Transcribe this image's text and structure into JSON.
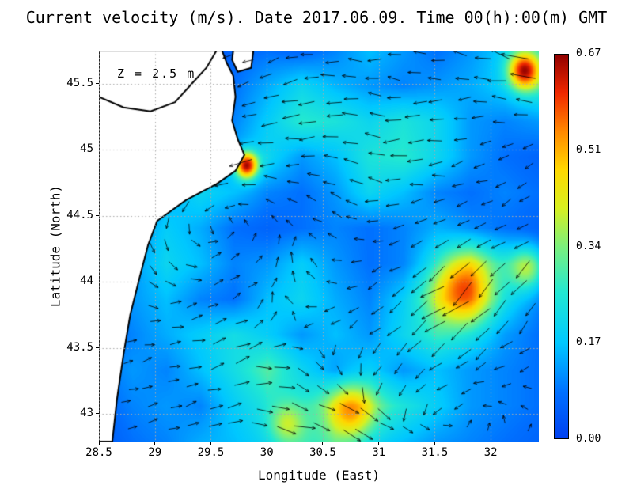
{
  "chart_data": {
    "type": "heatmap",
    "title": "Current velocity (m/s). Date 2017.06.09. Time 00(h):00(m) GMT",
    "annotation": "Z = 2.5 m",
    "xlabel": "Longitude (East)",
    "ylabel": "Latitude (North)",
    "xlim": [
      28.5,
      32.43
    ],
    "ylim": [
      42.79,
      45.75
    ],
    "xticks": [
      28.5,
      29,
      29.5,
      30,
      30.5,
      31,
      31.5,
      32
    ],
    "yticks": [
      43,
      43.5,
      44,
      44.5,
      45,
      45.5
    ],
    "colorbar": {
      "min": 0,
      "max": 0.67,
      "ticks": [
        "0.00",
        "0.17",
        "0.34",
        "0.51",
        "0.67"
      ],
      "stops": [
        [
          0.0,
          "#0040f0"
        ],
        [
          0.12,
          "#0070ff"
        ],
        [
          0.25,
          "#00c8ff"
        ],
        [
          0.38,
          "#22e8d2"
        ],
        [
          0.5,
          "#7cf07c"
        ],
        [
          0.6,
          "#d8f020"
        ],
        [
          0.7,
          "#ffd800"
        ],
        [
          0.8,
          "#ff8800"
        ],
        [
          0.9,
          "#f02800"
        ],
        [
          1.0,
          "#900000"
        ]
      ]
    },
    "colors": {
      "land": "#ffffff",
      "coast": "#000000",
      "arrow": "#000000",
      "grid": "#aaaaaa"
    },
    "speed_grid": {
      "lon": [
        28.5,
        32.43
      ],
      "lat": [
        45.75,
        42.79
      ],
      "values": [
        [
          0.04,
          0.04,
          0.04,
          0.04,
          0.06,
          0.08,
          0.06,
          0.1,
          0.16,
          0.12,
          0.08,
          0.12,
          0.18,
          0.22
        ],
        [
          0.04,
          0.04,
          0.04,
          0.05,
          0.08,
          0.14,
          0.2,
          0.15,
          0.12,
          0.1,
          0.12,
          0.14,
          0.18,
          0.25
        ],
        [
          0.04,
          0.04,
          0.05,
          0.06,
          0.1,
          0.18,
          0.26,
          0.24,
          0.2,
          0.24,
          0.2,
          0.12,
          0.1,
          0.12
        ],
        [
          0.04,
          0.04,
          0.05,
          0.08,
          0.14,
          0.2,
          0.12,
          0.16,
          0.24,
          0.26,
          0.2,
          0.12,
          0.08,
          0.06
        ],
        [
          0.04,
          0.06,
          0.14,
          0.2,
          0.16,
          0.1,
          0.08,
          0.12,
          0.2,
          0.16,
          0.1,
          0.08,
          0.1,
          0.08
        ],
        [
          0.06,
          0.1,
          0.18,
          0.14,
          0.08,
          0.06,
          0.08,
          0.1,
          0.08,
          0.1,
          0.14,
          0.1,
          0.08,
          0.06
        ],
        [
          0.06,
          0.12,
          0.2,
          0.16,
          0.1,
          0.12,
          0.18,
          0.12,
          0.08,
          0.1,
          0.2,
          0.3,
          0.22,
          0.12
        ],
        [
          0.08,
          0.12,
          0.16,
          0.1,
          0.08,
          0.16,
          0.2,
          0.14,
          0.1,
          0.18,
          0.3,
          0.32,
          0.2,
          0.1
        ],
        [
          0.06,
          0.1,
          0.14,
          0.18,
          0.22,
          0.18,
          0.12,
          0.16,
          0.12,
          0.2,
          0.26,
          0.2,
          0.12,
          0.08
        ],
        [
          0.08,
          0.12,
          0.1,
          0.16,
          0.22,
          0.3,
          0.2,
          0.12,
          0.18,
          0.12,
          0.16,
          0.12,
          0.1,
          0.08
        ],
        [
          0.06,
          0.1,
          0.12,
          0.1,
          0.18,
          0.24,
          0.26,
          0.3,
          0.3,
          0.24,
          0.18,
          0.12,
          0.1,
          0.08
        ],
        [
          0.04,
          0.08,
          0.1,
          0.14,
          0.16,
          0.2,
          0.26,
          0.28,
          0.2,
          0.16,
          0.12,
          0.1,
          0.08,
          0.06
        ]
      ]
    },
    "hotspots": [
      {
        "lon": 29.82,
        "lat": 44.88,
        "amp": 0.5,
        "r": 0.1
      },
      {
        "lon": 32.3,
        "lat": 45.6,
        "amp": 0.45,
        "r": 0.14
      },
      {
        "lon": 31.75,
        "lat": 43.95,
        "amp": 0.28,
        "r": 0.26
      },
      {
        "lon": 30.75,
        "lat": 43.02,
        "amp": 0.24,
        "r": 0.2
      },
      {
        "lon": 32.33,
        "lat": 44.1,
        "amp": 0.22,
        "r": 0.16
      },
      {
        "lon": 30.18,
        "lat": 42.92,
        "amp": 0.15,
        "r": 0.15
      }
    ],
    "current_vectors": {
      "lon": [
        28.5,
        32.43
      ],
      "lat": [
        45.75,
        42.79
      ],
      "u": [
        [
          -0.05,
          -0.08,
          -0.12,
          -0.18,
          -0.22,
          -0.2,
          -0.25,
          -0.35
        ],
        [
          -0.05,
          -0.1,
          -0.18,
          -0.22,
          -0.2,
          -0.18,
          -0.15,
          -0.2
        ],
        [
          -0.05,
          -0.1,
          -0.15,
          -0.18,
          -0.15,
          -0.18,
          -0.15,
          -0.1
        ],
        [
          0.0,
          0.05,
          0.08,
          0.02,
          -0.1,
          -0.15,
          -0.2,
          -0.22
        ],
        [
          0.04,
          0.08,
          0.1,
          -0.02,
          -0.1,
          -0.25,
          -0.3,
          -0.2
        ],
        [
          0.05,
          0.1,
          0.18,
          0.12,
          0.02,
          -0.1,
          -0.12,
          -0.08
        ],
        [
          0.05,
          0.12,
          0.22,
          0.26,
          0.16,
          0.08,
          0.04,
          0.04
        ]
      ],
      "v": [
        [
          0.0,
          -0.02,
          -0.05,
          -0.05,
          0.0,
          0.04,
          0.08,
          0.15
        ],
        [
          -0.05,
          -0.08,
          -0.1,
          -0.05,
          0.0,
          0.0,
          -0.04,
          0.0
        ],
        [
          -0.1,
          -0.12,
          -0.08,
          0.02,
          0.05,
          0.0,
          -0.05,
          -0.08
        ],
        [
          -0.1,
          -0.06,
          0.04,
          0.08,
          0.04,
          -0.06,
          -0.14,
          -0.18
        ],
        [
          -0.04,
          0.0,
          0.05,
          0.04,
          -0.05,
          -0.2,
          -0.28,
          -0.22
        ],
        [
          0.0,
          0.04,
          0.05,
          -0.04,
          -0.1,
          -0.1,
          -0.05,
          0.0
        ],
        [
          0.04,
          0.05,
          0.0,
          -0.05,
          -0.05,
          0.0,
          0.04,
          0.05
        ]
      ]
    },
    "land_polygons": [
      [
        [
          28.5,
          45.75
        ],
        [
          29.6,
          45.75
        ],
        [
          29.64,
          45.66
        ],
        [
          29.7,
          45.56
        ],
        [
          29.72,
          45.4
        ],
        [
          29.69,
          45.22
        ],
        [
          29.74,
          45.08
        ],
        [
          29.8,
          44.96
        ],
        [
          29.72,
          44.84
        ],
        [
          29.55,
          44.74
        ],
        [
          29.28,
          44.62
        ],
        [
          29.02,
          44.46
        ],
        [
          28.94,
          44.28
        ],
        [
          28.86,
          44.02
        ],
        [
          28.78,
          43.75
        ],
        [
          28.72,
          43.45
        ],
        [
          28.66,
          43.1
        ],
        [
          28.62,
          42.79
        ],
        [
          28.5,
          42.79
        ]
      ],
      [
        [
          29.7,
          45.75
        ],
        [
          29.88,
          45.75
        ],
        [
          29.86,
          45.62
        ],
        [
          29.74,
          45.59
        ],
        [
          29.69,
          45.68
        ]
      ]
    ],
    "coast_lines": [
      [
        [
          28.5,
          45.4
        ],
        [
          28.72,
          45.32
        ],
        [
          28.96,
          45.29
        ],
        [
          29.18,
          45.36
        ],
        [
          29.33,
          45.5
        ],
        [
          29.46,
          45.62
        ],
        [
          29.55,
          45.75
        ]
      ]
    ]
  }
}
